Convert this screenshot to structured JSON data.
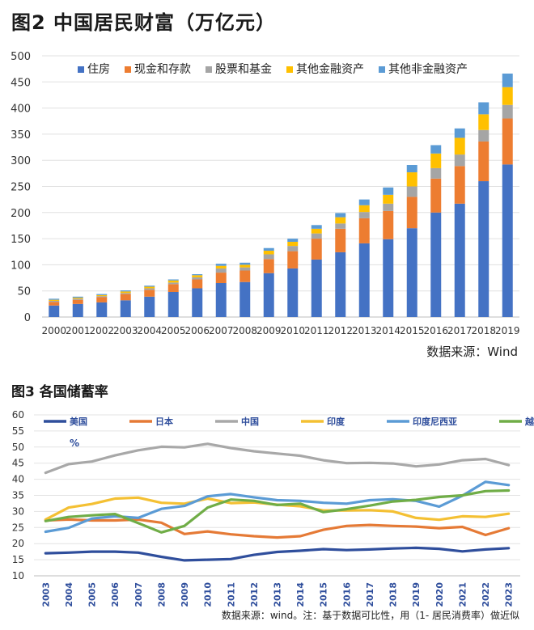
{
  "figure2": {
    "title": "图2    中国居民财富（万亿元）",
    "source": "数据来源：Wind"
  },
  "figure3": {
    "title": "图3  各国储蓄率",
    "source": "数据来源：wind。注：基于数据可比性，用（1- 居民消费率）做近似",
    "unit_label": "%"
  },
  "chart_data": [
    {
      "type": "bar",
      "stacked": true,
      "title": "图2    中国居民财富（万亿元）",
      "categories": [
        "2000",
        "2001",
        "2002",
        "2003",
        "2004",
        "2005",
        "2006",
        "2007",
        "2008",
        "2009",
        "2010",
        "2011",
        "2012",
        "2013",
        "2014",
        "2015",
        "2016",
        "2017",
        "2018",
        "2019"
      ],
      "ylim": [
        0,
        500
      ],
      "yticks": [
        0,
        50,
        100,
        150,
        200,
        250,
        300,
        350,
        400,
        450,
        500
      ],
      "grid": true,
      "legend_position": "top",
      "series": [
        {
          "name": "住房",
          "color": "#4472C4",
          "values": [
            22,
            25,
            28,
            32,
            39,
            48,
            55,
            65,
            67,
            84,
            93,
            110,
            124,
            141,
            149,
            170,
            200,
            217,
            260,
            292
          ]
        },
        {
          "name": "现金和存款",
          "color": "#ED7D31",
          "values": [
            7,
            8,
            10,
            12,
            13,
            15,
            17,
            20,
            22,
            27,
            33,
            40,
            45,
            48,
            54,
            60,
            65,
            72,
            76,
            88
          ]
        },
        {
          "name": "股票和基金",
          "color": "#A5A5A5",
          "values": [
            2,
            2,
            2,
            2,
            3,
            3,
            4,
            8,
            6,
            9,
            10,
            10,
            10,
            12,
            14,
            20,
            20,
            22,
            22,
            26
          ]
        },
        {
          "name": "其他金融资产",
          "color": "#FFC000",
          "values": [
            2,
            2,
            2,
            3,
            3,
            4,
            4,
            5,
            5,
            7,
            8,
            9,
            12,
            13,
            17,
            27,
            28,
            32,
            30,
            34
          ]
        },
        {
          "name": "其他非金融资产",
          "color": "#5B9BD5",
          "values": [
            2,
            2,
            2,
            2,
            2,
            2,
            2,
            4,
            4,
            5,
            6,
            7,
            8,
            11,
            14,
            14,
            16,
            18,
            23,
            26
          ]
        }
      ]
    },
    {
      "type": "line",
      "title": "图3  各国储蓄率",
      "categories": [
        "2003",
        "2004",
        "2005",
        "2006",
        "2007",
        "2008",
        "2009",
        "2010",
        "2011",
        "2012",
        "2013",
        "2014",
        "2015",
        "2016",
        "2017",
        "2018",
        "2019",
        "2020",
        "2021",
        "2022",
        "2023"
      ],
      "ylim": [
        10,
        60
      ],
      "yticks": [
        10,
        15,
        20,
        25,
        30,
        35,
        40,
        45,
        50,
        55,
        60
      ],
      "grid": true,
      "legend_position": "top",
      "series": [
        {
          "name": "美国",
          "color": "#2F4E9C",
          "values": [
            17.0,
            17.2,
            17.5,
            17.5,
            17.2,
            15.9,
            14.8,
            15.0,
            15.2,
            16.5,
            17.4,
            17.8,
            18.3,
            18.0,
            18.2,
            18.5,
            18.7,
            18.4,
            17.6,
            18.2,
            18.6
          ]
        },
        {
          "name": "日本",
          "color": "#E57A36",
          "values": [
            27.2,
            27.5,
            27.2,
            27.2,
            27.5,
            26.5,
            23.0,
            23.8,
            22.9,
            22.3,
            21.9,
            22.3,
            24.3,
            25.5,
            25.8,
            25.5,
            25.3,
            24.8,
            25.2,
            22.7,
            24.8
          ]
        },
        {
          "name": "中国",
          "color": "#A8A8A8",
          "values": [
            42.0,
            44.7,
            45.5,
            47.4,
            49.0,
            50.1,
            49.9,
            51.0,
            49.7,
            48.7,
            48.0,
            47.3,
            45.9,
            45.0,
            45.1,
            44.9,
            44.0,
            44.6,
            45.9,
            46.3,
            44.4
          ]
        },
        {
          "name": "印度",
          "color": "#F4C033",
          "values": [
            27.5,
            31.2,
            32.3,
            34.0,
            34.3,
            32.7,
            32.4,
            34.0,
            32.6,
            32.8,
            32.1,
            31.6,
            30.3,
            30.3,
            30.4,
            30.0,
            28.0,
            27.4,
            28.5,
            28.3,
            29.3
          ]
        },
        {
          "name": "印度尼西亚",
          "color": "#5B9BD5",
          "values": [
            23.7,
            24.9,
            27.8,
            28.5,
            28.0,
            30.8,
            31.7,
            34.7,
            35.4,
            34.4,
            33.5,
            33.3,
            32.7,
            32.4,
            33.5,
            33.8,
            33.3,
            31.5,
            34.9,
            39.2,
            38.2
          ]
        },
        {
          "name": "越南",
          "color": "#70AD47",
          "values": [
            27.0,
            28.3,
            28.8,
            29.2,
            26.4,
            23.5,
            25.5,
            31.2,
            33.7,
            33.3,
            32.0,
            32.4,
            29.8,
            30.7,
            31.8,
            33.1,
            33.6,
            34.5,
            35.0,
            36.3,
            36.5
          ]
        }
      ]
    }
  ]
}
